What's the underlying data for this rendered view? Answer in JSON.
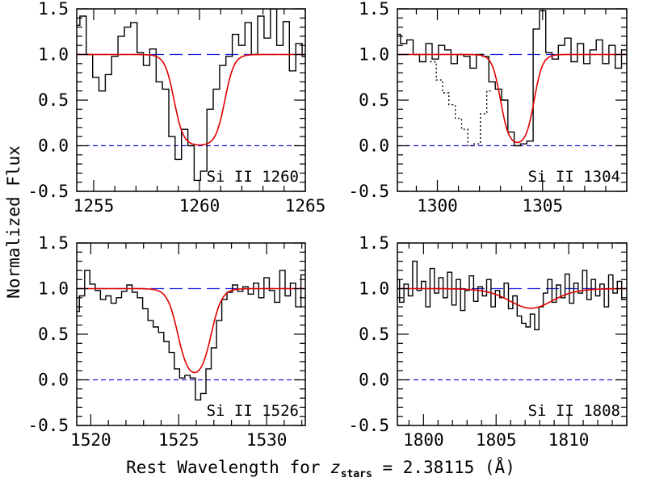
{
  "figure": {
    "ylabel": "Normalized Flux",
    "xlabel_parts": {
      "prefix": "Rest Wavelength for ",
      "z": "z",
      "subscript": "stars",
      "suffix": " = 2.38115 (Å)"
    }
  },
  "colors": {
    "spectrum": "#000000",
    "model": "#e00000",
    "continuum": "#1a1adf",
    "zero": "#1a1adf"
  },
  "chart_data": [
    {
      "type": "line",
      "label": "Si II 1260",
      "xlim": [
        1254.2,
        1265
      ],
      "ylim": [
        -0.5,
        1.5
      ],
      "xticks": [
        1255,
        1260,
        1265
      ],
      "yticks": [
        -0.5,
        0.0,
        0.5,
        1.0,
        1.5
      ],
      "continuum": 1.0,
      "zero_line": 0.0,
      "model": {
        "center": 1260.0,
        "halfwidth": 1.2,
        "edge": 0.22,
        "depth": 1.0
      },
      "spectrum": [
        [
          1254.2,
          1.32
        ],
        [
          1254.5,
          1.42
        ],
        [
          1254.8,
          1.0
        ],
        [
          1255.1,
          0.75
        ],
        [
          1255.4,
          0.6
        ],
        [
          1255.7,
          0.78
        ],
        [
          1256.0,
          0.98
        ],
        [
          1256.3,
          1.2
        ],
        [
          1256.6,
          1.3
        ],
        [
          1256.9,
          1.35
        ],
        [
          1257.2,
          1.02
        ],
        [
          1257.5,
          0.88
        ],
        [
          1257.8,
          1.06
        ],
        [
          1258.1,
          0.7
        ],
        [
          1258.4,
          0.62
        ],
        [
          1258.7,
          0.1
        ],
        [
          1259.0,
          -0.15
        ],
        [
          1259.3,
          0.18
        ],
        [
          1259.6,
          0.0
        ],
        [
          1259.9,
          -0.38
        ],
        [
          1260.2,
          -0.28
        ],
        [
          1260.5,
          0.4
        ],
        [
          1260.8,
          0.62
        ],
        [
          1261.1,
          0.88
        ],
        [
          1261.4,
          0.98
        ],
        [
          1261.7,
          1.22
        ],
        [
          1262.0,
          1.1
        ],
        [
          1262.3,
          1.35
        ],
        [
          1262.6,
          1.0
        ],
        [
          1262.9,
          1.42
        ],
        [
          1263.2,
          1.18
        ],
        [
          1263.5,
          1.5
        ],
        [
          1263.8,
          1.1
        ],
        [
          1264.1,
          1.36
        ],
        [
          1264.4,
          0.82
        ],
        [
          1264.7,
          1.12
        ],
        [
          1265.0,
          0.98
        ]
      ]
    },
    {
      "type": "line",
      "label": "Si II 1304",
      "xlim": [
        1298.1,
        1309
      ],
      "ylim": [
        -0.5,
        1.5
      ],
      "xticks": [
        1300,
        1305
      ],
      "yticks": [
        -0.5,
        0.0,
        0.5,
        1.0,
        1.5
      ],
      "continuum": 1.0,
      "zero_line": 0.0,
      "model": {
        "center": 1303.8,
        "halfwidth": 0.8,
        "edge": 0.2,
        "depth": 1.0
      },
      "spectrum": [
        [
          1298.1,
          1.22
        ],
        [
          1298.4,
          1.12
        ],
        [
          1298.7,
          1.16
        ],
        [
          1299.0,
          1.0
        ],
        [
          1299.3,
          0.92
        ],
        [
          1299.6,
          1.12
        ],
        [
          1299.9,
          0.95
        ],
        [
          1300.2,
          1.1
        ],
        [
          1300.5,
          1.05
        ],
        [
          1300.8,
          0.9
        ],
        [
          1301.1,
          1.0
        ],
        [
          1301.4,
          0.98
        ],
        [
          1301.7,
          0.85
        ],
        [
          1302.0,
          1.0
        ],
        [
          1302.3,
          0.98
        ],
        [
          1302.6,
          0.7
        ],
        [
          1302.9,
          0.62
        ],
        [
          1303.2,
          0.5
        ],
        [
          1303.5,
          0.15
        ],
        [
          1303.8,
          0.0
        ],
        [
          1304.1,
          0.02
        ],
        [
          1304.4,
          0.05
        ],
        [
          1304.7,
          1.28
        ],
        [
          1305.0,
          1.48
        ],
        [
          1305.3,
          1.02
        ],
        [
          1305.6,
          0.95
        ],
        [
          1305.9,
          1.1
        ],
        [
          1306.2,
          1.18
        ],
        [
          1306.5,
          0.92
        ],
        [
          1306.8,
          1.12
        ],
        [
          1307.1,
          0.9
        ],
        [
          1307.4,
          1.05
        ],
        [
          1307.7,
          1.16
        ],
        [
          1308.0,
          0.9
        ],
        [
          1308.3,
          1.1
        ],
        [
          1308.6,
          0.85
        ],
        [
          1308.9,
          1.05
        ]
      ],
      "blend": [
        [
          1299.8,
          0.92
        ],
        [
          1300.1,
          0.72
        ],
        [
          1300.4,
          0.58
        ],
        [
          1300.7,
          0.45
        ],
        [
          1301.0,
          0.3
        ],
        [
          1301.3,
          0.18
        ],
        [
          1301.6,
          0.0
        ],
        [
          1301.9,
          0.02
        ],
        [
          1302.2,
          0.35
        ],
        [
          1302.5,
          0.6
        ]
      ]
    },
    {
      "type": "line",
      "label": "Si II 1526",
      "xlim": [
        1519.2,
        1532.2
      ],
      "ylim": [
        -0.5,
        1.5
      ],
      "xticks": [
        1520,
        1525,
        1530
      ],
      "yticks": [
        -0.5,
        0.0,
        0.5,
        1.0,
        1.5
      ],
      "continuum": 1.0,
      "zero_line": 0.0,
      "model": {
        "center": 1525.9,
        "halfwidth": 0.95,
        "edge": 0.3,
        "depth": 1.0
      },
      "spectrum": [
        [
          1519.2,
          0.75
        ],
        [
          1519.5,
          0.92
        ],
        [
          1519.8,
          1.2
        ],
        [
          1520.1,
          1.05
        ],
        [
          1520.4,
          0.98
        ],
        [
          1520.7,
          0.88
        ],
        [
          1521.0,
          0.92
        ],
        [
          1521.3,
          0.84
        ],
        [
          1521.6,
          0.9
        ],
        [
          1521.9,
          0.97
        ],
        [
          1522.2,
          1.04
        ],
        [
          1522.5,
          0.96
        ],
        [
          1522.8,
          0.9
        ],
        [
          1523.1,
          0.78
        ],
        [
          1523.4,
          0.65
        ],
        [
          1523.7,
          0.58
        ],
        [
          1524.0,
          0.52
        ],
        [
          1524.3,
          0.42
        ],
        [
          1524.6,
          0.3
        ],
        [
          1524.9,
          0.12
        ],
        [
          1525.2,
          0.02
        ],
        [
          1525.5,
          0.05
        ],
        [
          1525.8,
          0.02
        ],
        [
          1526.1,
          -0.22
        ],
        [
          1526.4,
          -0.15
        ],
        [
          1526.7,
          0.12
        ],
        [
          1527.0,
          0.35
        ],
        [
          1527.3,
          0.65
        ],
        [
          1527.6,
          0.88
        ],
        [
          1527.9,
          0.96
        ],
        [
          1528.2,
          1.04
        ],
        [
          1528.5,
          0.97
        ],
        [
          1528.8,
          1.02
        ],
        [
          1529.1,
          0.94
        ],
        [
          1529.4,
          1.06
        ],
        [
          1529.7,
          0.9
        ],
        [
          1530.0,
          1.12
        ],
        [
          1530.3,
          0.98
        ],
        [
          1530.6,
          0.85
        ],
        [
          1530.9,
          1.2
        ],
        [
          1531.2,
          0.92
        ],
        [
          1531.5,
          1.06
        ],
        [
          1531.8,
          0.8
        ],
        [
          1532.1,
          1.15
        ]
      ]
    },
    {
      "type": "line",
      "label": "Si II 1808",
      "xlim": [
        1798.2,
        1814
      ],
      "ylim": [
        -0.5,
        1.5
      ],
      "xticks": [
        1800,
        1805,
        1810
      ],
      "yticks": [
        -0.5,
        0.0,
        0.5,
        1.0,
        1.5
      ],
      "continuum": 1.0,
      "zero_line": 0.0,
      "model": {
        "center": 1807.4,
        "halfwidth": 1.0,
        "edge": 0.9,
        "depth": 0.38
      },
      "spectrum": [
        [
          1798.2,
          1.1
        ],
        [
          1798.5,
          0.85
        ],
        [
          1798.8,
          1.05
        ],
        [
          1799.1,
          0.92
        ],
        [
          1799.4,
          1.3
        ],
        [
          1799.7,
          0.98
        ],
        [
          1800.0,
          1.08
        ],
        [
          1800.3,
          0.8
        ],
        [
          1800.6,
          1.22
        ],
        [
          1800.9,
          0.95
        ],
        [
          1801.2,
          1.12
        ],
        [
          1801.5,
          0.9
        ],
        [
          1801.8,
          1.18
        ],
        [
          1802.1,
          0.82
        ],
        [
          1802.4,
          1.1
        ],
        [
          1802.7,
          0.76
        ],
        [
          1803.0,
          0.98
        ],
        [
          1803.3,
          1.14
        ],
        [
          1803.6,
          0.86
        ],
        [
          1803.9,
          1.02
        ],
        [
          1804.2,
          0.92
        ],
        [
          1804.5,
          1.1
        ],
        [
          1804.8,
          0.8
        ],
        [
          1805.1,
          0.98
        ],
        [
          1805.4,
          0.9
        ],
        [
          1805.7,
          1.06
        ],
        [
          1806.0,
          0.78
        ],
        [
          1806.3,
          0.92
        ],
        [
          1806.6,
          0.7
        ],
        [
          1806.9,
          0.62
        ],
        [
          1807.2,
          0.58
        ],
        [
          1807.5,
          0.72
        ],
        [
          1807.8,
          0.55
        ],
        [
          1808.1,
          0.8
        ],
        [
          1808.4,
          0.95
        ],
        [
          1808.7,
          1.1
        ],
        [
          1809.0,
          0.85
        ],
        [
          1809.3,
          1.04
        ],
        [
          1809.6,
          0.9
        ],
        [
          1809.9,
          1.16
        ],
        [
          1810.2,
          0.84
        ],
        [
          1810.5,
          1.06
        ],
        [
          1810.8,
          0.95
        ],
        [
          1811.1,
          1.2
        ],
        [
          1811.4,
          0.88
        ],
        [
          1811.7,
          1.1
        ],
        [
          1812.0,
          0.92
        ],
        [
          1812.3,
          1.05
        ],
        [
          1812.6,
          0.8
        ],
        [
          1812.9,
          1.15
        ],
        [
          1813.2,
          0.95
        ],
        [
          1813.5,
          1.08
        ],
        [
          1813.8,
          0.88
        ]
      ]
    }
  ]
}
